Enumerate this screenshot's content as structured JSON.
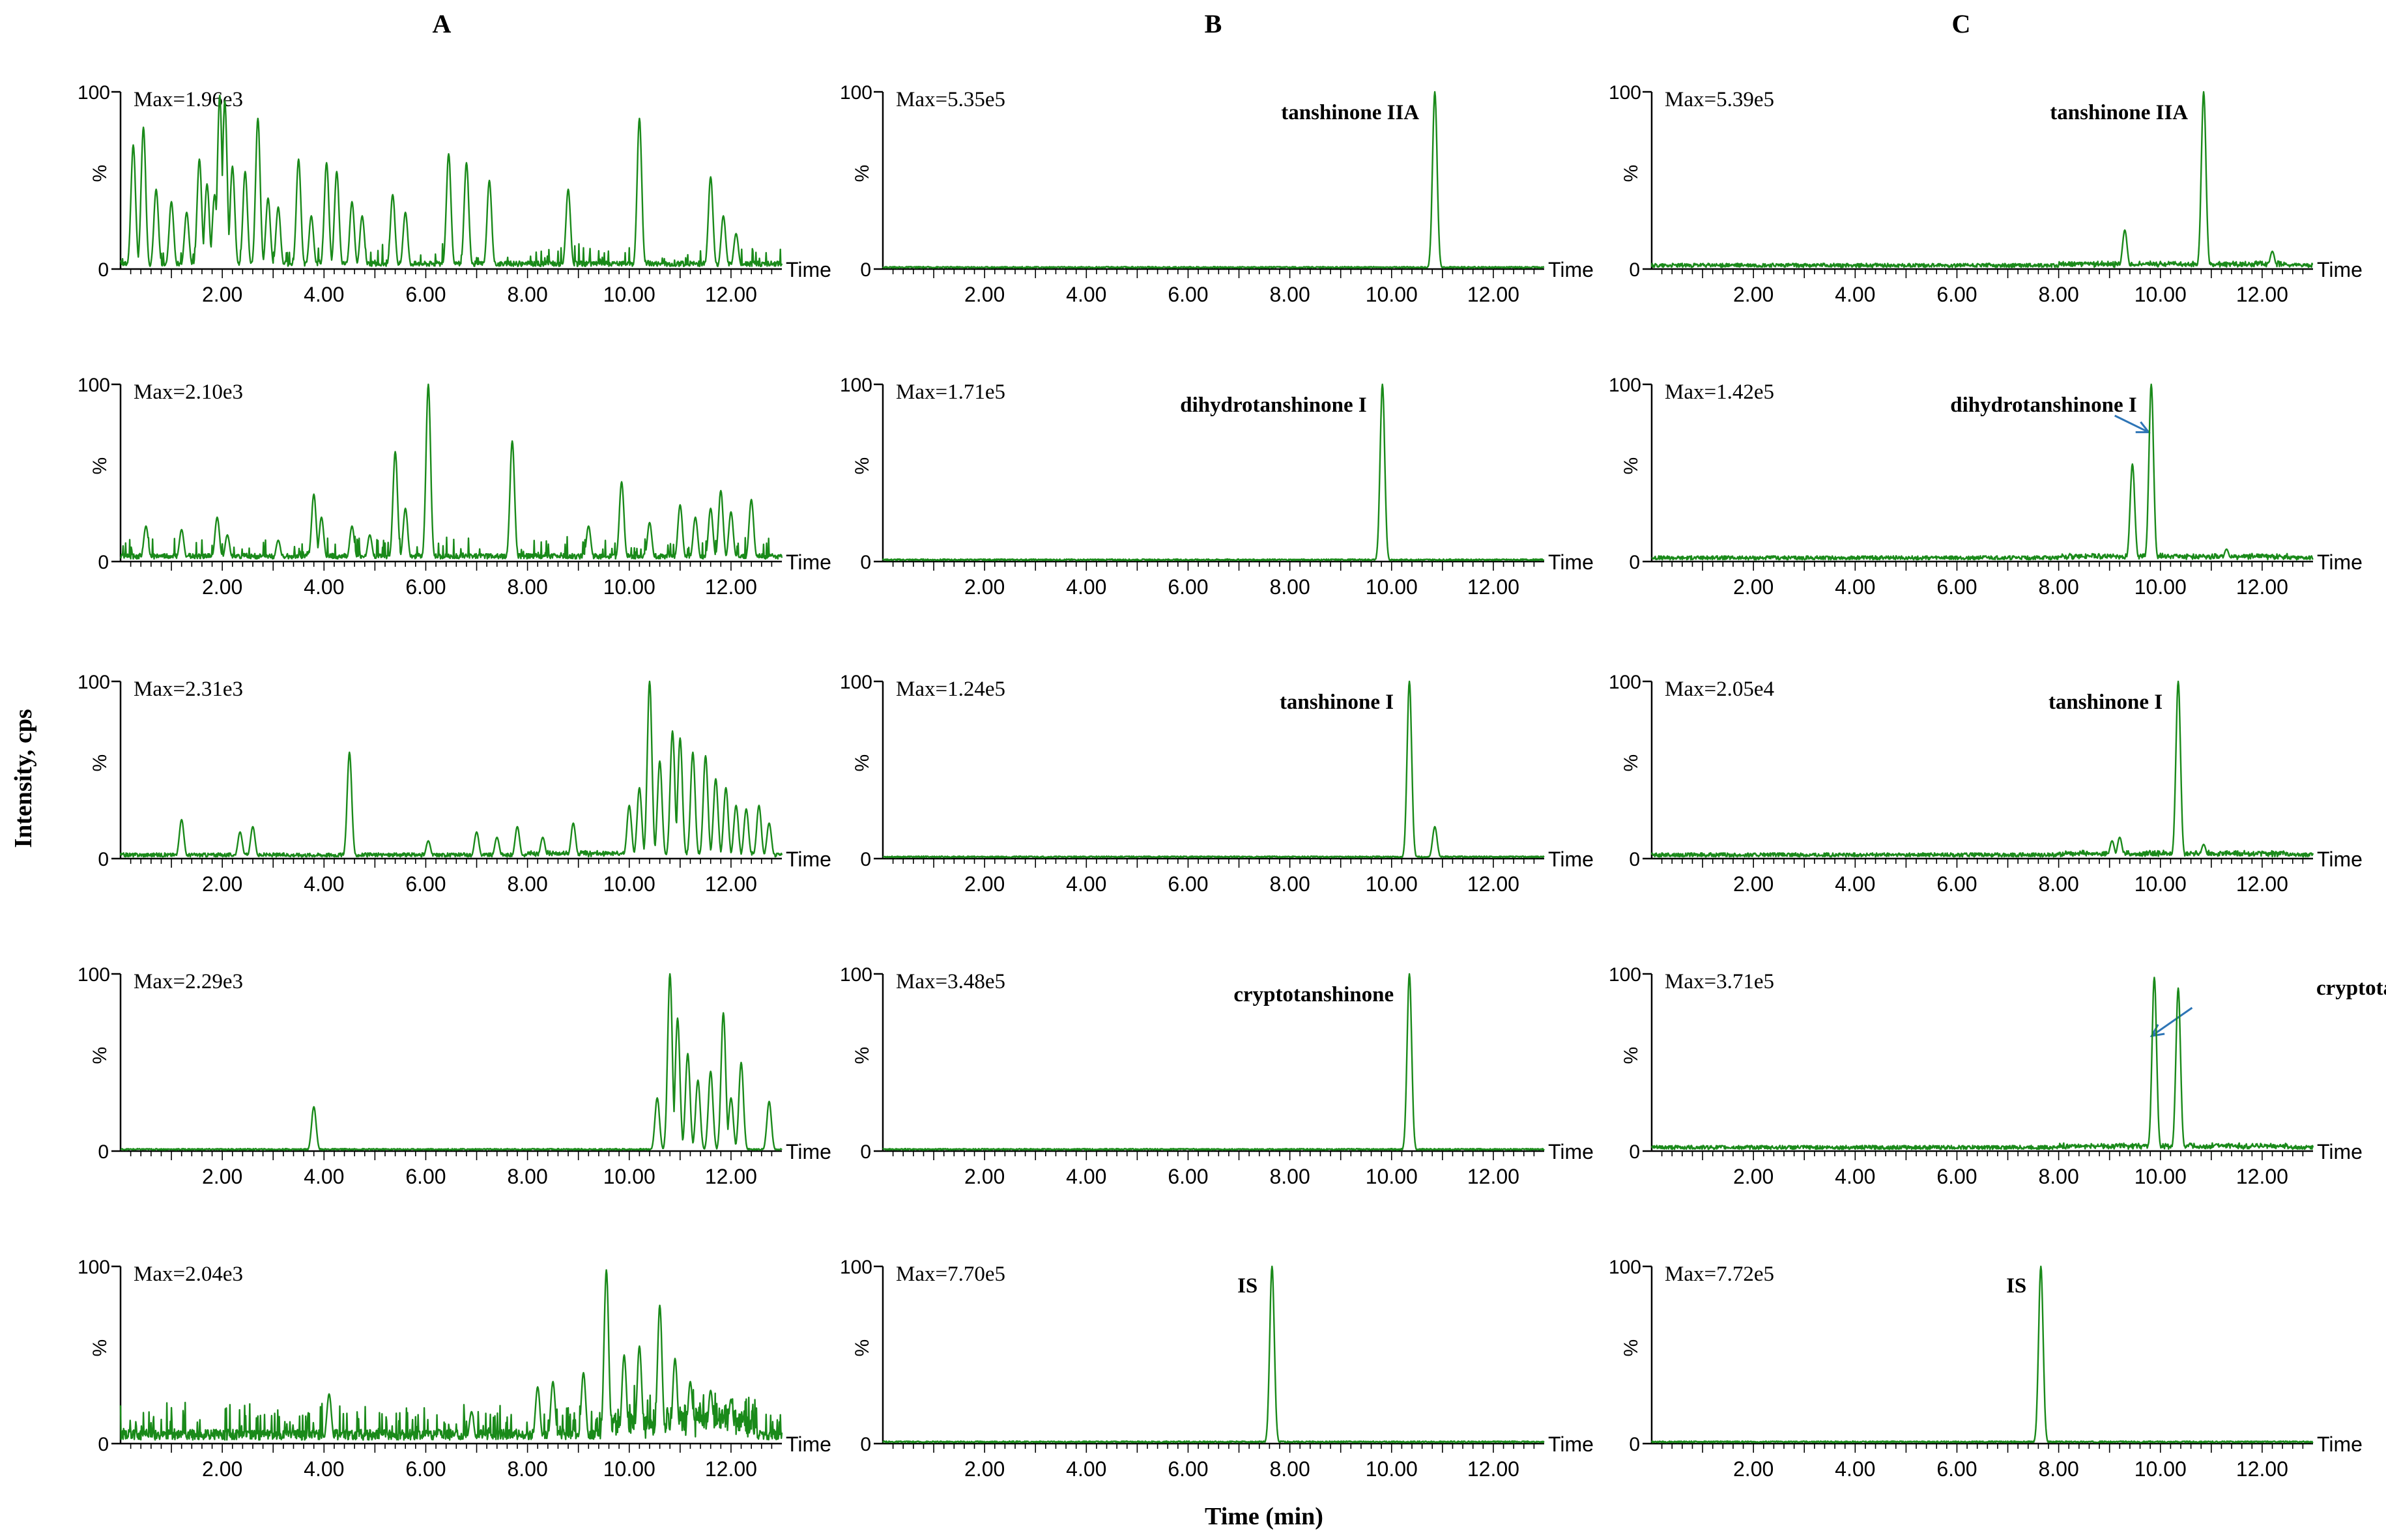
{
  "figure": {
    "column_labels": [
      "A",
      "B",
      "C"
    ],
    "y_axis_title": "Intensity, cps",
    "x_axis_title": "Time (min)",
    "time_label": "Time",
    "y_ticks": [
      "0",
      "%",
      "100"
    ],
    "x_ticks": [
      "2.00",
      "4.00",
      "6.00",
      "8.00",
      "10.00",
      "12.00"
    ],
    "colors": {
      "trace": "#1a8a1a",
      "axis": "#000000",
      "arrow": "#2e75b6"
    }
  },
  "chart_data": [
    {
      "type": "line",
      "column": "A",
      "row": 1,
      "max_label": "Max=1.96e3",
      "peak_label": "",
      "xlim": [
        0,
        13
      ],
      "ylim": [
        0,
        100
      ],
      "noise": "blank",
      "peaks": [
        [
          0.25,
          70
        ],
        [
          0.45,
          80
        ],
        [
          0.7,
          45
        ],
        [
          1.0,
          38
        ],
        [
          1.3,
          32
        ],
        [
          1.55,
          62
        ],
        [
          1.7,
          48
        ],
        [
          1.85,
          42
        ],
        [
          1.95,
          98
        ],
        [
          2.05,
          95
        ],
        [
          2.2,
          58
        ],
        [
          2.45,
          55
        ],
        [
          2.7,
          85
        ],
        [
          2.9,
          40
        ],
        [
          3.1,
          35
        ],
        [
          3.5,
          62
        ],
        [
          3.75,
          30
        ],
        [
          4.05,
          60
        ],
        [
          4.25,
          55
        ],
        [
          4.55,
          38
        ],
        [
          4.75,
          30
        ],
        [
          5.35,
          42
        ],
        [
          5.6,
          32
        ],
        [
          6.45,
          65
        ],
        [
          6.8,
          60
        ],
        [
          7.25,
          50
        ],
        [
          8.8,
          45
        ],
        [
          10.2,
          85
        ],
        [
          11.6,
          52
        ],
        [
          11.85,
          30
        ],
        [
          12.1,
          20
        ]
      ]
    },
    {
      "type": "line",
      "column": "A",
      "row": 2,
      "max_label": "Max=2.10e3",
      "peak_label": "",
      "xlim": [
        0,
        13
      ],
      "ylim": [
        0,
        100
      ],
      "noise": "blank",
      "peaks": [
        [
          0.5,
          20
        ],
        [
          1.2,
          18
        ],
        [
          1.9,
          25
        ],
        [
          2.1,
          15
        ],
        [
          3.1,
          12
        ],
        [
          3.8,
          38
        ],
        [
          3.95,
          25
        ],
        [
          4.55,
          20
        ],
        [
          4.9,
          15
        ],
        [
          5.4,
          62
        ],
        [
          5.6,
          30
        ],
        [
          6.05,
          100
        ],
        [
          7.7,
          68
        ],
        [
          9.2,
          20
        ],
        [
          9.85,
          45
        ],
        [
          10.4,
          22
        ],
        [
          11.0,
          32
        ],
        [
          11.3,
          25
        ],
        [
          11.6,
          30
        ],
        [
          11.8,
          40
        ],
        [
          12.0,
          28
        ],
        [
          12.4,
          35
        ]
      ]
    },
    {
      "type": "line",
      "column": "A",
      "row": 3,
      "max_label": "Max=2.31e3",
      "peak_label": "",
      "xlim": [
        0,
        13
      ],
      "ylim": [
        0,
        100
      ],
      "noise": "light",
      "peaks": [
        [
          1.2,
          22
        ],
        [
          2.35,
          15
        ],
        [
          2.6,
          18
        ],
        [
          4.5,
          60
        ],
        [
          6.05,
          10
        ],
        [
          7.0,
          15
        ],
        [
          7.4,
          12
        ],
        [
          7.8,
          18
        ],
        [
          8.3,
          12
        ],
        [
          8.9,
          20
        ],
        [
          10.0,
          30
        ],
        [
          10.2,
          40
        ],
        [
          10.4,
          100
        ],
        [
          10.6,
          55
        ],
        [
          10.85,
          72
        ],
        [
          11.0,
          68
        ],
        [
          11.25,
          60
        ],
        [
          11.5,
          58
        ],
        [
          11.7,
          45
        ],
        [
          11.9,
          40
        ],
        [
          12.1,
          30
        ],
        [
          12.3,
          28
        ],
        [
          12.55,
          30
        ],
        [
          12.75,
          20
        ]
      ]
    },
    {
      "type": "line",
      "column": "A",
      "row": 4,
      "max_label": "Max=2.29e3",
      "peak_label": "",
      "xlim": [
        0,
        13
      ],
      "ylim": [
        0,
        100
      ],
      "noise": "flat",
      "peaks": [
        [
          3.8,
          25
        ],
        [
          10.55,
          30
        ],
        [
          10.8,
          100
        ],
        [
          10.95,
          75
        ],
        [
          11.15,
          55
        ],
        [
          11.35,
          40
        ],
        [
          11.6,
          45
        ],
        [
          11.85,
          78
        ],
        [
          12.0,
          30
        ],
        [
          12.2,
          50
        ],
        [
          12.75,
          28
        ]
      ]
    },
    {
      "type": "line",
      "column": "A",
      "row": 5,
      "max_label": "Max=2.04e3",
      "peak_label": "",
      "xlim": [
        0,
        13
      ],
      "ylim": [
        0,
        100
      ],
      "noise": "heavy",
      "peaks": [
        [
          4.1,
          28
        ],
        [
          6.9,
          18
        ],
        [
          8.2,
          32
        ],
        [
          8.5,
          35
        ],
        [
          9.1,
          40
        ],
        [
          9.55,
          98
        ],
        [
          9.9,
          50
        ],
        [
          10.2,
          55
        ],
        [
          10.6,
          78
        ],
        [
          10.9,
          48
        ],
        [
          11.2,
          35
        ],
        [
          11.6,
          30
        ],
        [
          12.0,
          25
        ]
      ]
    },
    {
      "type": "line",
      "column": "B",
      "row": 1,
      "max_label": "Max=5.35e5",
      "peak_label": "tanshinone IIA",
      "xlim": [
        0,
        13
      ],
      "ylim": [
        0,
        100
      ],
      "noise": "flat",
      "peaks": [
        [
          10.85,
          100
        ]
      ]
    },
    {
      "type": "line",
      "column": "B",
      "row": 2,
      "max_label": "Max=1.71e5",
      "peak_label": "dihydrotanshinone I",
      "xlim": [
        0,
        13
      ],
      "ylim": [
        0,
        100
      ],
      "noise": "flat",
      "peaks": [
        [
          9.82,
          100
        ]
      ]
    },
    {
      "type": "line",
      "column": "B",
      "row": 3,
      "max_label": "Max=1.24e5",
      "peak_label": "tanshinone I",
      "xlim": [
        0,
        13
      ],
      "ylim": [
        0,
        100
      ],
      "noise": "flat",
      "peaks": [
        [
          10.35,
          100
        ],
        [
          10.85,
          18
        ]
      ]
    },
    {
      "type": "line",
      "column": "B",
      "row": 4,
      "max_label": "Max=3.48e5",
      "peak_label": "cryptotanshinone",
      "xlim": [
        0,
        13
      ],
      "ylim": [
        0,
        100
      ],
      "noise": "flat",
      "peaks": [
        [
          10.35,
          100
        ]
      ]
    },
    {
      "type": "line",
      "column": "B",
      "row": 5,
      "max_label": "Max=7.70e5",
      "peak_label": "IS",
      "xlim": [
        0,
        13
      ],
      "ylim": [
        0,
        100
      ],
      "noise": "flat",
      "peaks": [
        [
          7.65,
          100
        ]
      ]
    },
    {
      "type": "line",
      "column": "C",
      "row": 1,
      "max_label": "Max=5.39e5",
      "peak_label": "tanshinone IIA",
      "xlim": [
        0,
        13
      ],
      "ylim": [
        0,
        100
      ],
      "noise": "light",
      "peaks": [
        [
          9.3,
          22
        ],
        [
          10.85,
          100
        ],
        [
          12.2,
          10
        ]
      ]
    },
    {
      "type": "line",
      "column": "C",
      "row": 2,
      "max_label": "Max=1.42e5",
      "peak_label": "dihydrotanshinone I",
      "xlim": [
        0,
        13
      ],
      "ylim": [
        0,
        100
      ],
      "noise": "light",
      "peaks": [
        [
          9.45,
          55
        ],
        [
          9.82,
          100
        ],
        [
          11.3,
          7
        ]
      ]
    },
    {
      "type": "line",
      "column": "C",
      "row": 3,
      "max_label": "Max=2.05e4",
      "peak_label": "tanshinone I",
      "xlim": [
        0,
        13
      ],
      "ylim": [
        0,
        100
      ],
      "noise": "light",
      "peaks": [
        [
          9.05,
          10
        ],
        [
          9.2,
          12
        ],
        [
          10.35,
          100
        ],
        [
          10.85,
          8
        ]
      ]
    },
    {
      "type": "line",
      "column": "C",
      "row": 4,
      "max_label": "Max=3.71e5",
      "peak_label": "cryptotanshinone",
      "xlim": [
        0,
        13
      ],
      "ylim": [
        0,
        100
      ],
      "noise": "light",
      "peaks": [
        [
          9.88,
          98
        ],
        [
          10.35,
          92
        ],
        [
          11.1,
          4
        ]
      ]
    },
    {
      "type": "line",
      "column": "C",
      "row": 5,
      "max_label": "Max=7.72e5",
      "peak_label": "IS",
      "xlim": [
        0,
        13
      ],
      "ylim": [
        0,
        100
      ],
      "noise": "flat",
      "peaks": [
        [
          7.65,
          100
        ]
      ]
    }
  ]
}
